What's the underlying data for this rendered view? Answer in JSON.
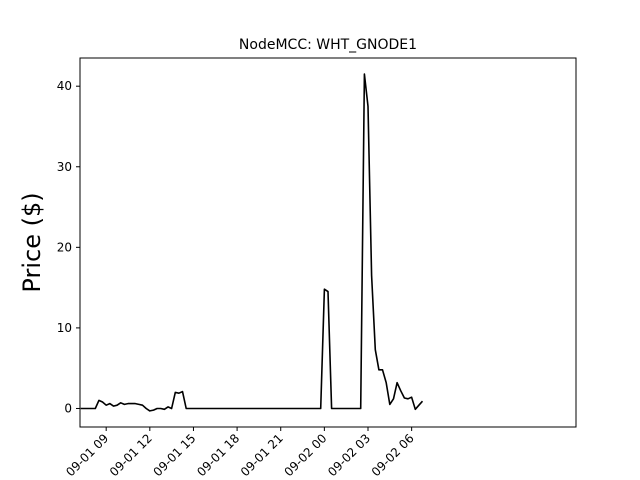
{
  "chart_data": {
    "type": "line",
    "title": "NodeMCC: WHT_GNODE1",
    "xlabel": "",
    "ylabel": "Price ($)",
    "xlim_hours": [
      -1.8,
      32.3
    ],
    "ylim": [
      -2.3,
      43.5
    ],
    "yticks": [
      0,
      10,
      20,
      30,
      40
    ],
    "xticks": [
      {
        "label": "09-01 09",
        "hour": 0
      },
      {
        "label": "09-01 12",
        "hour": 3
      },
      {
        "label": "09-01 15",
        "hour": 6
      },
      {
        "label": "09-01 18",
        "hour": 9
      },
      {
        "label": "09-01 21",
        "hour": 12
      },
      {
        "label": "09-02 00",
        "hour": 15
      },
      {
        "label": "09-02 03",
        "hour": 18
      },
      {
        "label": "09-02 06",
        "hour": 21
      }
    ],
    "series": [
      {
        "color": "#000000",
        "points": [
          [
            -1.75,
            0.0
          ],
          [
            -1.5,
            0.0
          ],
          [
            -1.25,
            0.0
          ],
          [
            -1.0,
            0.0
          ],
          [
            -0.75,
            0.0
          ],
          [
            -0.5,
            1.0
          ],
          [
            -0.25,
            0.8
          ],
          [
            0.0,
            0.4
          ],
          [
            0.25,
            0.6
          ],
          [
            0.5,
            0.3
          ],
          [
            0.75,
            0.4
          ],
          [
            1.0,
            0.7
          ],
          [
            1.25,
            0.5
          ],
          [
            1.5,
            0.6
          ],
          [
            1.75,
            0.6
          ],
          [
            2.0,
            0.6
          ],
          [
            2.25,
            0.5
          ],
          [
            2.5,
            0.4
          ],
          [
            2.75,
            0.0
          ],
          [
            3.0,
            -0.3
          ],
          [
            3.25,
            -0.2
          ],
          [
            3.5,
            0.0
          ],
          [
            3.75,
            0.0
          ],
          [
            4.0,
            -0.1
          ],
          [
            4.25,
            0.2
          ],
          [
            4.5,
            0.0
          ],
          [
            4.75,
            2.0
          ],
          [
            5.0,
            1.9
          ],
          [
            5.25,
            2.1
          ],
          [
            5.5,
            0.0
          ],
          [
            6.0,
            0.0
          ],
          [
            8.0,
            0.0
          ],
          [
            10.0,
            0.0
          ],
          [
            12.0,
            0.0
          ],
          [
            14.0,
            0.0
          ],
          [
            14.75,
            0.0
          ],
          [
            15.0,
            14.8
          ],
          [
            15.25,
            14.5
          ],
          [
            15.5,
            0.0
          ],
          [
            16.0,
            0.0
          ],
          [
            17.0,
            0.0
          ],
          [
            17.5,
            0.0
          ],
          [
            17.75,
            41.5
          ],
          [
            18.0,
            37.5
          ],
          [
            18.25,
            16.5
          ],
          [
            18.5,
            7.3
          ],
          [
            18.75,
            4.8
          ],
          [
            19.0,
            4.8
          ],
          [
            19.25,
            3.2
          ],
          [
            19.5,
            0.5
          ],
          [
            19.75,
            1.2
          ],
          [
            20.0,
            3.2
          ],
          [
            20.25,
            2.2
          ],
          [
            20.5,
            1.3
          ],
          [
            20.75,
            1.2
          ],
          [
            21.0,
            1.4
          ],
          [
            21.25,
            -0.1
          ],
          [
            21.5,
            0.4
          ],
          [
            21.75,
            0.9
          ]
        ]
      }
    ],
    "grid": false
  }
}
